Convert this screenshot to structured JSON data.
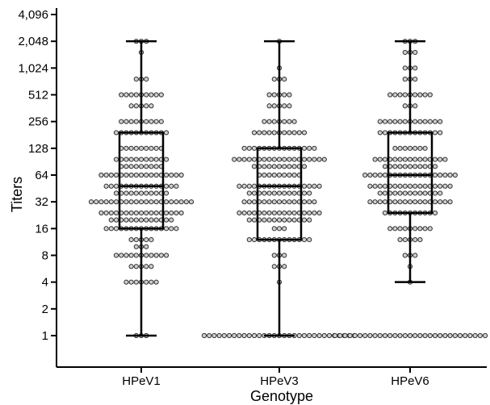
{
  "chart_data": {
    "type": "box",
    "xlabel": "Genotype",
    "ylabel": "Titers",
    "y_scale": "log2",
    "ylim": [
      1,
      4096
    ],
    "yticks": [
      {
        "value": 1,
        "label": "1"
      },
      {
        "value": 2,
        "label": "2"
      },
      {
        "value": 4,
        "label": "4"
      },
      {
        "value": 8,
        "label": "8"
      },
      {
        "value": 16,
        "label": "16"
      },
      {
        "value": 32,
        "label": "32"
      },
      {
        "value": 64,
        "label": "64"
      },
      {
        "value": 128,
        "label": "128"
      },
      {
        "value": 256,
        "label": "256"
      },
      {
        "value": 512,
        "label": "512"
      },
      {
        "value": 1024,
        "label": "1,024"
      },
      {
        "value": 2048,
        "label": "2,048"
      },
      {
        "value": 4096,
        "label": "4,096"
      }
    ],
    "categories": [
      "HPeV1",
      "HPeV3",
      "HPeV6"
    ],
    "groups": [
      {
        "name": "HPeV1",
        "whisker_low": 1,
        "q1": 16,
        "median": 48,
        "q3": 192,
        "whisker_high": 2048,
        "points": [
          {
            "value": 2048,
            "count": 3
          },
          {
            "value": 1536,
            "count": 1
          },
          {
            "value": 768,
            "count": 3
          },
          {
            "value": 512,
            "count": 9
          },
          {
            "value": 384,
            "count": 5
          },
          {
            "value": 256,
            "count": 9
          },
          {
            "value": 192,
            "count": 11
          },
          {
            "value": 128,
            "count": 9
          },
          {
            "value": 96,
            "count": 11
          },
          {
            "value": 80,
            "count": 9
          },
          {
            "value": 64,
            "count": 17
          },
          {
            "value": 48,
            "count": 15
          },
          {
            "value": 40,
            "count": 11
          },
          {
            "value": 32,
            "count": 21
          },
          {
            "value": 24,
            "count": 17
          },
          {
            "value": 20,
            "count": 13
          },
          {
            "value": 16,
            "count": 15
          },
          {
            "value": 12,
            "count": 5
          },
          {
            "value": 10,
            "count": 3
          },
          {
            "value": 8,
            "count": 11
          },
          {
            "value": 6,
            "count": 5
          },
          {
            "value": 4,
            "count": 7
          },
          {
            "value": 1,
            "count": 3
          }
        ]
      },
      {
        "name": "HPeV3",
        "whisker_low": 1,
        "q1": 12,
        "median": 48,
        "q3": 128,
        "whisker_high": 2048,
        "points": [
          {
            "value": 2048,
            "count": 1
          },
          {
            "value": 1024,
            "count": 1
          },
          {
            "value": 768,
            "count": 3
          },
          {
            "value": 512,
            "count": 5
          },
          {
            "value": 384,
            "count": 5
          },
          {
            "value": 256,
            "count": 7
          },
          {
            "value": 192,
            "count": 11
          },
          {
            "value": 128,
            "count": 15
          },
          {
            "value": 96,
            "count": 19
          },
          {
            "value": 80,
            "count": 11
          },
          {
            "value": 64,
            "count": 9
          },
          {
            "value": 48,
            "count": 17
          },
          {
            "value": 40,
            "count": 13
          },
          {
            "value": 32,
            "count": 15
          },
          {
            "value": 24,
            "count": 17
          },
          {
            "value": 20,
            "count": 13
          },
          {
            "value": 16,
            "count": 3
          },
          {
            "value": 12,
            "count": 13
          },
          {
            "value": 8,
            "count": 3
          },
          {
            "value": 6,
            "count": 3
          },
          {
            "value": 4,
            "count": 1
          },
          {
            "value": 1,
            "count": 31
          }
        ]
      },
      {
        "name": "HPeV6",
        "whisker_low": 4,
        "q1": 24,
        "median": 64,
        "q3": 192,
        "whisker_high": 2048,
        "points": [
          {
            "value": 2048,
            "count": 3
          },
          {
            "value": 1536,
            "count": 3
          },
          {
            "value": 1024,
            "count": 3
          },
          {
            "value": 768,
            "count": 3
          },
          {
            "value": 512,
            "count": 9
          },
          {
            "value": 384,
            "count": 3
          },
          {
            "value": 256,
            "count": 13
          },
          {
            "value": 192,
            "count": 13
          },
          {
            "value": 128,
            "count": 7
          },
          {
            "value": 96,
            "count": 15
          },
          {
            "value": 80,
            "count": 11
          },
          {
            "value": 64,
            "count": 19
          },
          {
            "value": 48,
            "count": 17
          },
          {
            "value": 40,
            "count": 13
          },
          {
            "value": 32,
            "count": 17
          },
          {
            "value": 24,
            "count": 11
          },
          {
            "value": 16,
            "count": 9
          },
          {
            "value": 12,
            "count": 5
          },
          {
            "value": 8,
            "count": 3
          },
          {
            "value": 6,
            "count": 1
          },
          {
            "value": 4,
            "count": 1
          },
          {
            "value": 1,
            "count": 31
          }
        ]
      }
    ]
  }
}
